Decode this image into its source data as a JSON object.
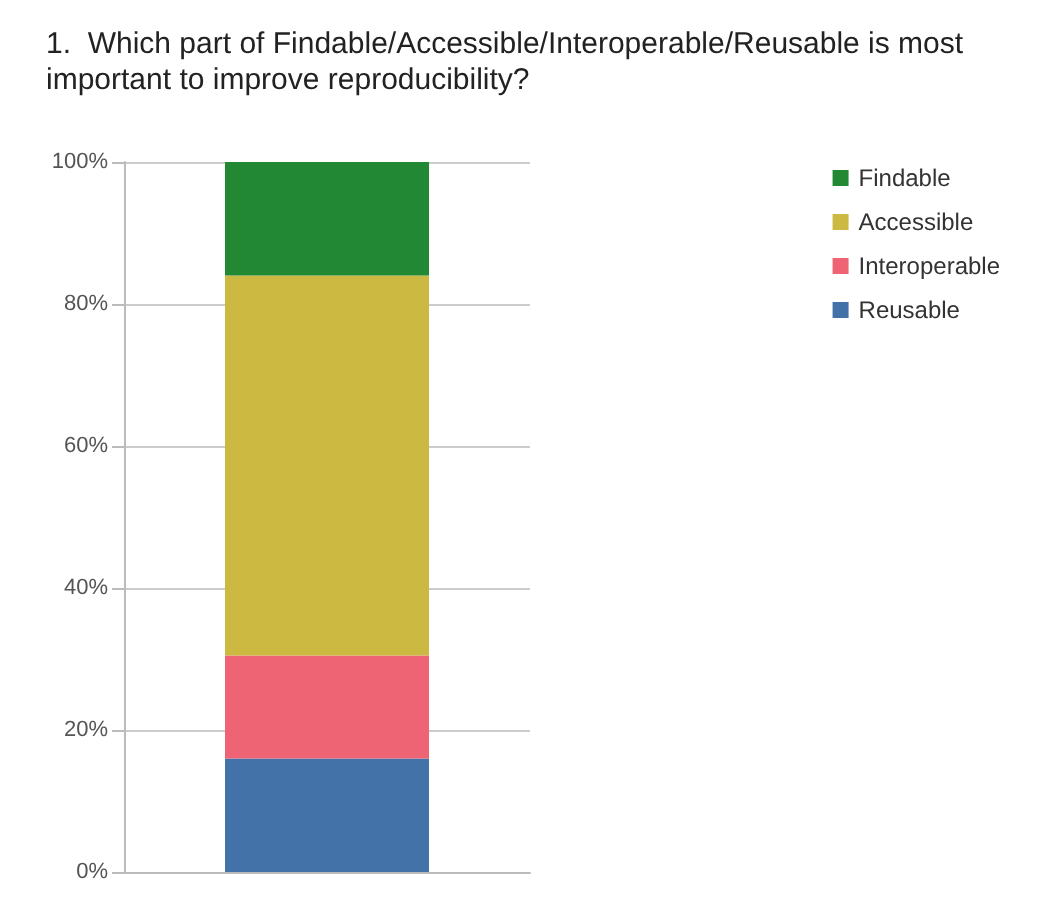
{
  "chart_data": {
    "type": "bar",
    "stacked": true,
    "title": "1.  Which part of Findable/Accessible/Interoperable/Reusable is most important to improve reproducibility?",
    "categories": [
      null
    ],
    "series": [
      {
        "name": "Reusable",
        "color": "#4372a8",
        "values": [
          16
        ]
      },
      {
        "name": "Interoperable",
        "color": "#ee6474",
        "values": [
          14.5
        ]
      },
      {
        "name": "Accessible",
        "color": "#cbb942",
        "values": [
          53.5
        ]
      },
      {
        "name": "Findable",
        "color": "#228833",
        "values": [
          16
        ]
      }
    ],
    "ylim": [
      0,
      100
    ],
    "yticks": [
      {
        "value": 0,
        "label": "0%"
      },
      {
        "value": 20,
        "label": "20%"
      },
      {
        "value": 40,
        "label": "40%"
      },
      {
        "value": 60,
        "label": "60%"
      },
      {
        "value": 80,
        "label": "80%"
      },
      {
        "value": 100,
        "label": "100%"
      }
    ],
    "grid": "y",
    "legend": "right"
  }
}
